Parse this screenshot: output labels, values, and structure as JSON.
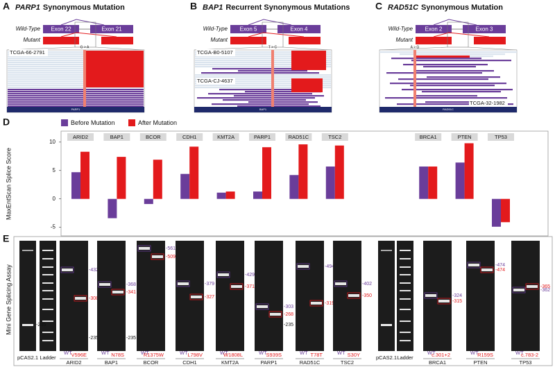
{
  "panels": [
    {
      "letter": "A",
      "gene": "PARP1",
      "title": "Synonymous Mutation",
      "wild_type": "Wild-Type",
      "mutant": "Mutant",
      "exons": [
        "Exon 22",
        "Exon 21"
      ],
      "samples": [
        "TCGA-66-2791"
      ],
      "change": "G > A",
      "track": "PARP1"
    },
    {
      "letter": "B",
      "gene": "BAP1",
      "title": "Recurrent Synonymous Mutations",
      "wild_type": "Wild-Type",
      "mutant": "Mutant",
      "exons": [
        "Exon 5",
        "Exon 4"
      ],
      "samples": [
        "TCGA-B0-5107",
        "TCGA-CJ-4637"
      ],
      "change": "T > C",
      "track": "BAP1"
    },
    {
      "letter": "C",
      "gene": "RAD51C",
      "title": "Synonymous Mutation",
      "wild_type": "Wild-Type",
      "mutant": "Mutant",
      "exons": [
        "Exon 2",
        "Exon 3"
      ],
      "samples": [
        "TCGA-32-1982"
      ],
      "change": "A > G",
      "track": "RAD51C"
    }
  ],
  "chart_data": {
    "type": "bar",
    "letter": "D",
    "y_label": "MaxEntScan Splice Score",
    "categories": [
      "ARID2",
      "BAP1",
      "BCOR",
      "CDH1",
      "KMT2A",
      "PARP1",
      "RAD51C",
      "TSC2",
      "BRCA1",
      "PTEN",
      "TP53"
    ],
    "series": [
      {
        "name": "Before Mutation",
        "color": "#6a3d9a",
        "values": [
          4.7,
          -3.4,
          -0.9,
          4.4,
          1.1,
          1.3,
          4.2,
          5.7,
          5.7,
          6.4,
          -4.9
        ]
      },
      {
        "name": "After Mutation",
        "color": "#e31a1c",
        "values": [
          8.3,
          7.4,
          6.9,
          9.2,
          1.3,
          9.1,
          9.6,
          9.4,
          5.7,
          9.8,
          -4.1
        ]
      }
    ],
    "ylim": [
      -5.9,
      11.2
    ],
    "yticks": [
      -5,
      0,
      5,
      10
    ],
    "legend": "top-left"
  },
  "gel": {
    "letter": "E",
    "y_label": "Mini Gene Splicing Assay",
    "controls": [
      {
        "lanes": [
          "pCAS2.1",
          "Ladder"
        ],
        "band_labels": [
          {
            "label": "-235",
            "lane": "ladder"
          }
        ]
      },
      {
        "lanes": [
          "pCAS2.1",
          "Ladder"
        ],
        "band_labels": []
      }
    ],
    "genes": [
      {
        "gene": "ARID2",
        "wt": "WT",
        "mutant": "V596E",
        "band_labels": [
          {
            "label": "-432",
            "lane": "wt"
          },
          {
            "label": "-308",
            "lane": "mutant"
          },
          {
            "label": "-235",
            "lane": "ladder"
          }
        ]
      },
      {
        "gene": "BAP1",
        "wt": "WT",
        "mutant": "N78S",
        "band_labels": [
          {
            "label": "-368",
            "lane": "wt"
          },
          {
            "label": "-341",
            "lane": "mutant"
          },
          {
            "label": "-235",
            "lane": "ladder"
          }
        ]
      },
      {
        "gene": "BCOR",
        "wt": "WT",
        "mutant": "R1375W",
        "band_labels": [
          {
            "label": "-561",
            "lane": "wt"
          },
          {
            "label": "-509",
            "lane": "mutant"
          }
        ]
      },
      {
        "gene": "CDH1",
        "wt": "WT",
        "mutant": "L798V",
        "band_labels": [
          {
            "label": "-379",
            "lane": "wt"
          },
          {
            "label": "-327",
            "lane": "mutant"
          }
        ]
      },
      {
        "gene": "KMT2A",
        "wt": "WT",
        "mutant": "W1808L",
        "band_labels": [
          {
            "label": "-429",
            "lane": "wt"
          },
          {
            "label": "-371",
            "lane": "mutant"
          }
        ]
      },
      {
        "gene": "PARP1",
        "wt": "WT",
        "mutant": "S939S",
        "band_labels": [
          {
            "label": "-303",
            "lane": "wt"
          },
          {
            "label": "-268",
            "lane": "mutant"
          },
          {
            "label": "-235",
            "lane": "ladder"
          }
        ]
      },
      {
        "gene": "RAD51C",
        "wt": "WT",
        "mutant": "T78T",
        "band_labels": [
          {
            "label": "-494",
            "lane": "wt"
          },
          {
            "label": "-319",
            "lane": "mutant"
          }
        ]
      },
      {
        "gene": "TSC2",
        "wt": "WT",
        "mutant": "S30Y",
        "band_labels": [
          {
            "label": "-402",
            "lane": "wt"
          },
          {
            "label": "-350",
            "lane": "mutant"
          }
        ]
      },
      {
        "gene": "BRCA1",
        "wt": "WT",
        "mutant": "c.301+2",
        "band_labels": [
          {
            "label": "-324",
            "lane": "wt"
          },
          {
            "label": "-315",
            "lane": "mutant"
          }
        ]
      },
      {
        "gene": "PTEN",
        "wt": "WT",
        "mutant": "R159S",
        "band_labels": [
          {
            "label": "-474",
            "lane": "wt"
          },
          {
            "label": "-474",
            "lane": "mutant"
          }
        ]
      },
      {
        "gene": "TP53",
        "wt": "WT",
        "mutant": "c.783-2",
        "band_labels": [
          {
            "label": "-365",
            "lane": "mutant"
          },
          {
            "label": "-362",
            "lane": "wt"
          }
        ]
      }
    ]
  }
}
